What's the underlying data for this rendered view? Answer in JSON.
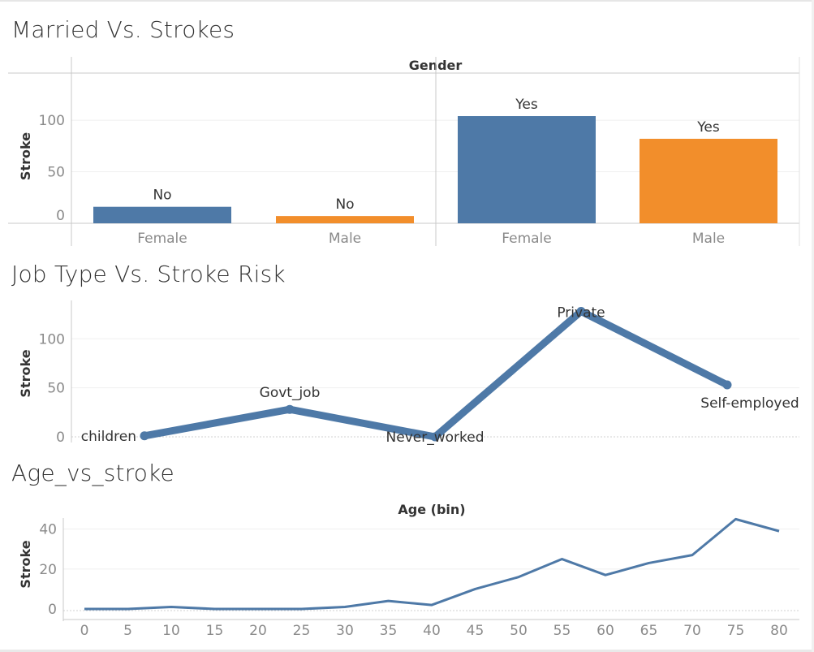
{
  "colors": {
    "blue": "#4e79a7",
    "orange": "#f28e2b",
    "line": "#4e79a7"
  },
  "titles": {
    "married": "Married Vs. Strokes",
    "job": "Job Type Vs. Stroke Risk",
    "age": "Age_vs_stroke"
  },
  "chart_data": [
    {
      "type": "bar",
      "title": "Married Vs. Strokes",
      "ylabel": "Stroke",
      "column_header": "Gender",
      "ylim": [
        0,
        130
      ],
      "yticks": [
        0,
        50,
        100
      ],
      "groups": [
        {
          "name": "No",
          "bars": [
            {
              "category": "Female",
              "value": 16
            },
            {
              "category": "Male",
              "value": 7
            }
          ]
        },
        {
          "name": "Yes",
          "bars": [
            {
              "category": "Female",
              "value": 104
            },
            {
              "category": "Male",
              "value": 82
            }
          ]
        }
      ],
      "grid": true,
      "legend": "none"
    },
    {
      "type": "line",
      "title": "Job Type Vs. Stroke Risk",
      "ylabel": "Stroke",
      "ylim": [
        0,
        135
      ],
      "yticks": [
        0,
        50,
        100
      ],
      "categories": [
        "children",
        "Govt_job",
        "Never_worked",
        "Private",
        "Self-employed"
      ],
      "values": [
        1,
        28,
        0,
        128,
        53
      ],
      "grid": true,
      "legend": "none"
    },
    {
      "type": "line",
      "title": "Age_vs_stroke",
      "xlabel": "Age (bin)",
      "ylabel": "Stroke",
      "ylim": [
        0,
        48
      ],
      "yticks": [
        0,
        20,
        40
      ],
      "x": [
        0,
        5,
        10,
        15,
        20,
        25,
        30,
        35,
        40,
        45,
        50,
        55,
        60,
        65,
        70,
        75,
        80
      ],
      "values": [
        0,
        0,
        1,
        0,
        0,
        0,
        1,
        4,
        2,
        10,
        16,
        25,
        17,
        23,
        27,
        45,
        39
      ],
      "grid": true,
      "legend": "none"
    }
  ]
}
